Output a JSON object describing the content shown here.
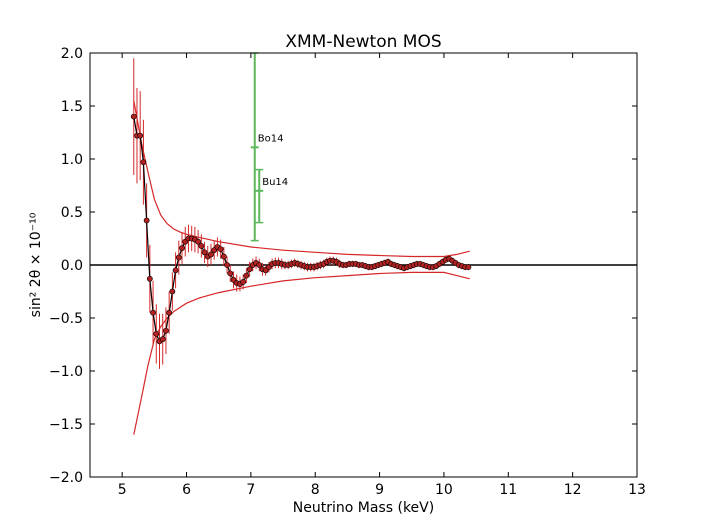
{
  "chart_data": {
    "type": "scatter",
    "title": "XMM-Newton MOS",
    "xlabel": "Neutrino Mass (keV)",
    "ylabel": "sin² 2θ  × 10⁻¹⁰",
    "xlim": [
      4.5,
      13
    ],
    "ylim": [
      -2.0,
      2.0
    ],
    "xticks": [
      5,
      6,
      7,
      8,
      9,
      10,
      11,
      12,
      13
    ],
    "yticks": [
      -2.0,
      -1.5,
      -1.0,
      -0.5,
      0.0,
      0.5,
      1.0,
      1.5,
      2.0
    ],
    "xtick_labels": [
      "5",
      "6",
      "7",
      "8",
      "9",
      "10",
      "11",
      "12",
      "13"
    ],
    "ytick_labels": [
      "−2.0",
      "−1.5",
      "−1.0",
      "−0.5",
      "0.0",
      "0.5",
      "1.0",
      "1.5",
      "2.0"
    ],
    "colors": {
      "data": "#d62728",
      "marker": "#b22222",
      "external": "#5cb85c",
      "zero_line": "#000000"
    },
    "series": [
      {
        "name": "measurement",
        "x": [
          5.18,
          5.23,
          5.28,
          5.33,
          5.38,
          5.43,
          5.48,
          5.53,
          5.58,
          5.63,
          5.68,
          5.73,
          5.78,
          5.83,
          5.88,
          5.93,
          5.98,
          6.03,
          6.08,
          6.13,
          6.18,
          6.23,
          6.28,
          6.33,
          6.38,
          6.43,
          6.48,
          6.53,
          6.58,
          6.63,
          6.68,
          6.73,
          6.78,
          6.83,
          6.88,
          6.93,
          6.98,
          7.03,
          7.08,
          7.13,
          7.18,
          7.23,
          7.28,
          7.33,
          7.38,
          7.43,
          7.48,
          7.53,
          7.58,
          7.63,
          7.68,
          7.73,
          7.78,
          7.83,
          7.88,
          7.93,
          7.98,
          8.03,
          8.08,
          8.13,
          8.18,
          8.23,
          8.28,
          8.33,
          8.38,
          8.43,
          8.48,
          8.53,
          8.58,
          8.63,
          8.68,
          8.73,
          8.78,
          8.83,
          8.88,
          8.93,
          8.98,
          9.03,
          9.08,
          9.13,
          9.18,
          9.23,
          9.28,
          9.33,
          9.38,
          9.43,
          9.48,
          9.53,
          9.58,
          9.63,
          9.68,
          9.73,
          9.78,
          9.83,
          9.88,
          9.93,
          9.98,
          10.03,
          10.08,
          10.13,
          10.18,
          10.23,
          10.28,
          10.33,
          10.38
        ],
        "y": [
          1.4,
          1.22,
          1.22,
          0.97,
          0.42,
          -0.13,
          -0.45,
          -0.65,
          -0.72,
          -0.7,
          -0.62,
          -0.45,
          -0.25,
          -0.05,
          0.07,
          0.16,
          0.22,
          0.25,
          0.25,
          0.24,
          0.22,
          0.18,
          0.12,
          0.08,
          0.1,
          0.14,
          0.17,
          0.15,
          0.08,
          0.0,
          -0.08,
          -0.14,
          -0.17,
          -0.18,
          -0.16,
          -0.1,
          -0.04,
          0.0,
          0.02,
          0.0,
          -0.04,
          -0.05,
          -0.02,
          0.01,
          0.02,
          0.02,
          0.01,
          0.0,
          0.0,
          0.01,
          0.02,
          0.01,
          0.0,
          -0.01,
          -0.02,
          -0.02,
          -0.02,
          -0.01,
          0.0,
          0.01,
          0.03,
          0.04,
          0.04,
          0.03,
          0.01,
          0.0,
          0.0,
          0.01,
          0.01,
          0.01,
          0.0,
          0.0,
          -0.01,
          -0.02,
          -0.02,
          -0.01,
          0.0,
          0.01,
          0.02,
          0.03,
          0.01,
          0.0,
          -0.01,
          -0.02,
          -0.03,
          -0.02,
          -0.01,
          0.0,
          0.01,
          0.01,
          0.0,
          -0.01,
          -0.02,
          -0.02,
          -0.01,
          0.01,
          0.03,
          0.05,
          0.06,
          0.04,
          0.02,
          0.0,
          -0.01,
          -0.02,
          -0.02
        ],
        "err": [
          0.55,
          0.45,
          0.42,
          0.4,
          0.35,
          0.32,
          0.3,
          0.28,
          0.26,
          0.24,
          0.22,
          0.2,
          0.18,
          0.17,
          0.16,
          0.15,
          0.14,
          0.13,
          0.12,
          0.12,
          0.11,
          0.11,
          0.1,
          0.1,
          0.1,
          0.09,
          0.09,
          0.09,
          0.09,
          0.08,
          0.08,
          0.08,
          0.08,
          0.07,
          0.07,
          0.07,
          0.07,
          0.06,
          0.06,
          0.06,
          0.06,
          0.05,
          0.05,
          0.05,
          0.05,
          0.05,
          0.05,
          0.04,
          0.04,
          0.04,
          0.04,
          0.04,
          0.04,
          0.04,
          0.04,
          0.04,
          0.04,
          0.04,
          0.04,
          0.04,
          0.04,
          0.04,
          0.04,
          0.04,
          0.04,
          0.03,
          0.03,
          0.03,
          0.03,
          0.03,
          0.03,
          0.03,
          0.03,
          0.03,
          0.03,
          0.03,
          0.03,
          0.03,
          0.03,
          0.03,
          0.03,
          0.03,
          0.03,
          0.03,
          0.03,
          0.03,
          0.03,
          0.03,
          0.03,
          0.03,
          0.03,
          0.03,
          0.03,
          0.03,
          0.03,
          0.03,
          0.03,
          0.03,
          0.03,
          0.03,
          0.03,
          0.03,
          0.03,
          0.03,
          0.03
        ]
      },
      {
        "name": "upper envelope",
        "x": [
          5.18,
          5.3,
          5.4,
          5.5,
          5.6,
          5.7,
          5.8,
          5.9,
          6.0,
          6.2,
          6.5,
          7.0,
          7.5,
          8.0,
          8.5,
          9.0,
          9.5,
          10.0,
          10.2,
          10.4
        ],
        "y": [
          1.55,
          1.15,
          0.88,
          0.62,
          0.47,
          0.39,
          0.34,
          0.31,
          0.29,
          0.26,
          0.22,
          0.17,
          0.14,
          0.12,
          0.1,
          0.09,
          0.08,
          0.08,
          0.1,
          0.13
        ]
      },
      {
        "name": "lower envelope",
        "x": [
          5.18,
          5.3,
          5.4,
          5.5,
          5.6,
          5.7,
          5.8,
          5.9,
          6.0,
          6.2,
          6.5,
          7.0,
          7.5,
          8.0,
          8.5,
          9.0,
          9.5,
          10.0,
          10.2,
          10.4
        ],
        "y": [
          -1.6,
          -1.25,
          -0.95,
          -0.7,
          -0.58,
          -0.5,
          -0.44,
          -0.4,
          -0.36,
          -0.31,
          -0.26,
          -0.2,
          -0.15,
          -0.12,
          -0.1,
          -0.08,
          -0.07,
          -0.07,
          -0.1,
          -0.13
        ]
      }
    ],
    "annotations": [
      {
        "label": "Bo14",
        "x": 7.06,
        "y": 1.11,
        "ylow": 0.23,
        "yhigh": 2.0
      },
      {
        "label": "Bu14",
        "x": 7.13,
        "y": 0.7,
        "ylow": 0.4,
        "yhigh": 0.9
      }
    ]
  }
}
